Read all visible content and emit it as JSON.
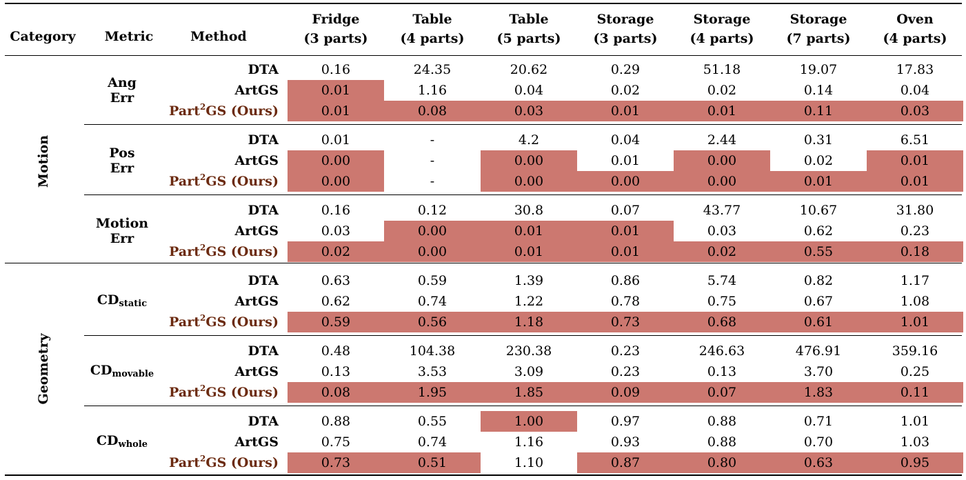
{
  "headers": {
    "category": "Category",
    "metric": "Metric",
    "method": "Method",
    "columns": [
      {
        "name": "Fridge",
        "parts": "(3 parts)"
      },
      {
        "name": "Table",
        "parts": "(4 parts)"
      },
      {
        "name": "Table",
        "parts": "(5 parts)"
      },
      {
        "name": "Storage",
        "parts": "(3 parts)"
      },
      {
        "name": "Storage",
        "parts": "(4 parts)"
      },
      {
        "name": "Storage",
        "parts": "(7 parts)"
      },
      {
        "name": "Oven",
        "parts": "(4 parts)"
      }
    ]
  },
  "methods": {
    "dta": "DTA",
    "artgs": "ArtGS",
    "ours_prefix": "Part",
    "ours_sup": "2",
    "ours_suffix": "GS (Ours)"
  },
  "categories": [
    "Motion",
    "Geometry"
  ],
  "groups": [
    {
      "category": 0,
      "metric_lines": [
        "Ang",
        "Err"
      ],
      "sub": "",
      "rows": [
        {
          "values": [
            "0.16",
            "24.35",
            "20.62",
            "0.29",
            "51.18",
            "19.07",
            "17.83"
          ],
          "highlight": [
            false,
            false,
            false,
            false,
            false,
            false,
            false
          ]
        },
        {
          "values": [
            "0.01",
            "1.16",
            "0.04",
            "0.02",
            "0.02",
            "0.14",
            "0.04"
          ],
          "highlight": [
            true,
            false,
            false,
            false,
            false,
            false,
            false
          ]
        },
        {
          "values": [
            "0.01",
            "0.08",
            "0.03",
            "0.01",
            "0.01",
            "0.11",
            "0.03"
          ],
          "highlight": [
            true,
            true,
            true,
            true,
            true,
            true,
            true
          ]
        }
      ]
    },
    {
      "category": 0,
      "metric_lines": [
        "Pos",
        "Err"
      ],
      "sub": "",
      "rows": [
        {
          "values": [
            "0.01",
            "-",
            "4.2",
            "0.04",
            "2.44",
            "0.31",
            "6.51"
          ],
          "highlight": [
            false,
            false,
            false,
            false,
            false,
            false,
            false
          ]
        },
        {
          "values": [
            "0.00",
            "-",
            "0.00",
            "0.01",
            "0.00",
            "0.02",
            "0.01"
          ],
          "highlight": [
            true,
            false,
            true,
            false,
            true,
            false,
            true
          ]
        },
        {
          "values": [
            "0.00",
            "-",
            "0.00",
            "0.00",
            "0.00",
            "0.01",
            "0.01"
          ],
          "highlight": [
            true,
            false,
            true,
            true,
            true,
            true,
            true
          ]
        }
      ]
    },
    {
      "category": 0,
      "metric_lines": [
        "Motion",
        "Err"
      ],
      "sub": "",
      "rows": [
        {
          "values": [
            "0.16",
            "0.12",
            "30.8",
            "0.07",
            "43.77",
            "10.67",
            "31.80"
          ],
          "highlight": [
            false,
            false,
            false,
            false,
            false,
            false,
            false
          ]
        },
        {
          "values": [
            "0.03",
            "0.00",
            "0.01",
            "0.01",
            "0.03",
            "0.62",
            "0.23"
          ],
          "highlight": [
            false,
            true,
            true,
            true,
            false,
            false,
            false
          ]
        },
        {
          "values": [
            "0.02",
            "0.00",
            "0.01",
            "0.01",
            "0.02",
            "0.55",
            "0.18"
          ],
          "highlight": [
            true,
            true,
            true,
            true,
            true,
            true,
            true
          ]
        }
      ]
    },
    {
      "category": 1,
      "metric_lines": [
        "CD"
      ],
      "sub": "static",
      "rows": [
        {
          "values": [
            "0.63",
            "0.59",
            "1.39",
            "0.86",
            "5.74",
            "0.82",
            "1.17"
          ],
          "highlight": [
            false,
            false,
            false,
            false,
            false,
            false,
            false
          ]
        },
        {
          "values": [
            "0.62",
            "0.74",
            "1.22",
            "0.78",
            "0.75",
            "0.67",
            "1.08"
          ],
          "highlight": [
            false,
            false,
            false,
            false,
            false,
            false,
            false
          ]
        },
        {
          "values": [
            "0.59",
            "0.56",
            "1.18",
            "0.73",
            "0.68",
            "0.61",
            "1.01"
          ],
          "highlight": [
            true,
            true,
            true,
            true,
            true,
            true,
            true
          ]
        }
      ]
    },
    {
      "category": 1,
      "metric_lines": [
        "CD"
      ],
      "sub": "movable",
      "rows": [
        {
          "values": [
            "0.48",
            "104.38",
            "230.38",
            "0.23",
            "246.63",
            "476.91",
            "359.16"
          ],
          "highlight": [
            false,
            false,
            false,
            false,
            false,
            false,
            false
          ]
        },
        {
          "values": [
            "0.13",
            "3.53",
            "3.09",
            "0.23",
            "0.13",
            "3.70",
            "0.25"
          ],
          "highlight": [
            false,
            false,
            false,
            false,
            false,
            false,
            false
          ]
        },
        {
          "values": [
            "0.08",
            "1.95",
            "1.85",
            "0.09",
            "0.07",
            "1.83",
            "0.11"
          ],
          "highlight": [
            true,
            true,
            true,
            true,
            true,
            true,
            true
          ]
        }
      ]
    },
    {
      "category": 1,
      "metric_lines": [
        "CD"
      ],
      "sub": "whole",
      "rows": [
        {
          "values": [
            "0.88",
            "0.55",
            "1.00",
            "0.97",
            "0.88",
            "0.71",
            "1.01"
          ],
          "highlight": [
            false,
            false,
            true,
            false,
            false,
            false,
            false
          ]
        },
        {
          "values": [
            "0.75",
            "0.74",
            "1.16",
            "0.93",
            "0.88",
            "0.70",
            "1.03"
          ],
          "highlight": [
            false,
            false,
            false,
            false,
            false,
            false,
            false
          ]
        },
        {
          "values": [
            "0.73",
            "0.51",
            "1.10",
            "0.87",
            "0.80",
            "0.63",
            "0.95"
          ],
          "highlight": [
            true,
            true,
            false,
            true,
            true,
            true,
            true
          ]
        }
      ]
    }
  ],
  "colors": {
    "highlight": "#cc7870",
    "ours_accent": "#6b2a10"
  }
}
